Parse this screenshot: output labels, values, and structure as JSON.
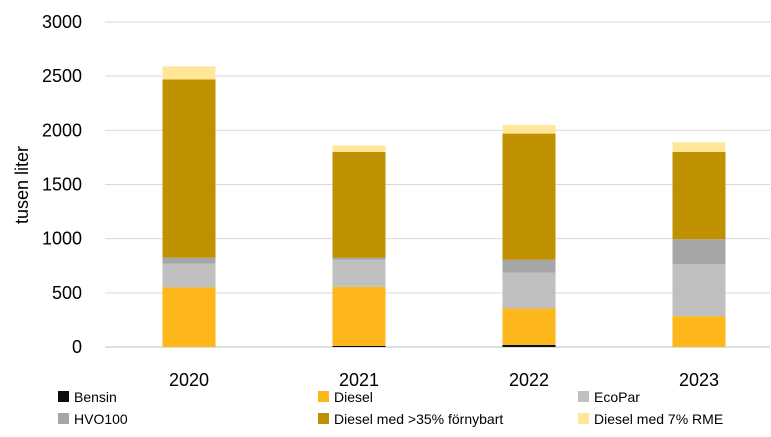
{
  "chart_data": {
    "type": "bar",
    "stacked": true,
    "categories": [
      "2020",
      "2021",
      "2022",
      "2023"
    ],
    "ylabel": "tusen liter",
    "xlabel": "",
    "ylim": [
      0,
      3000
    ],
    "yticks": [
      0,
      500,
      1000,
      1500,
      2000,
      2500,
      3000
    ],
    "grid": true,
    "legend_position": "bottom",
    "series": [
      {
        "name": "Bensin",
        "color": "#0d0d0d",
        "values": [
          0,
          10,
          20,
          0
        ]
      },
      {
        "name": "Diesel",
        "color": "#FDB71A",
        "values": [
          550,
          545,
          335,
          285
        ]
      },
      {
        "name": "EcoPar",
        "color": "#BFBFBF",
        "values": [
          220,
          250,
          330,
          480
        ]
      },
      {
        "name": "HVO100",
        "color": "#A6A6A6",
        "values": [
          55,
          20,
          120,
          230
        ]
      },
      {
        "name": "Diesel med >35% förnybart",
        "color": "#BF9000",
        "values": [
          1645,
          975,
          1165,
          805
        ]
      },
      {
        "name": "Diesel med 7% RME",
        "color": "#FFE699",
        "values": [
          120,
          60,
          80,
          90
        ]
      }
    ]
  }
}
